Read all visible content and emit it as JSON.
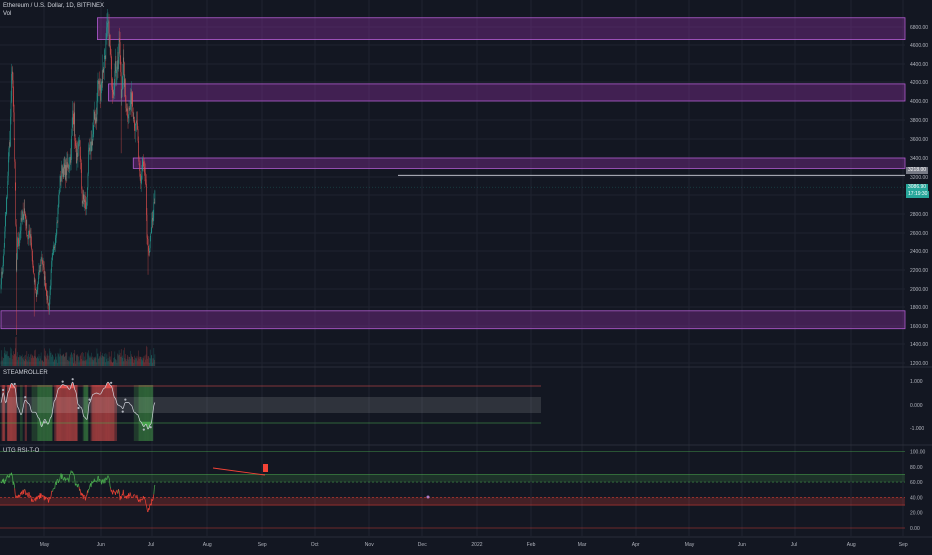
{
  "header": {
    "symbol_title": "Ethereum / U.S. Dollar, 1D, BITFINEX",
    "volume_label": "Vol"
  },
  "price_tags": {
    "resistance_value": "3218.00",
    "current_price": "3086.90",
    "countdown": "17:19:30"
  },
  "panes": {
    "steamroller": {
      "name": "STEAMROLLER"
    },
    "rsi": {
      "name": "UTG RSI-T-O"
    }
  },
  "colors": {
    "background": "#131722",
    "up": "#26a69a",
    "down": "#ef5350",
    "zone": "#7b2d8e",
    "zone_border": "#b15cd0",
    "rsi_green": "#4caf50",
    "rsi_red": "#f44336"
  },
  "chart_data": [
    {
      "type": "candlestick",
      "title": "Ethereum / U.S. Dollar, 1D, BITFINEX",
      "y_ticks": [
        "6800.00",
        "4600.00",
        "4400.00",
        "4200.00",
        "4000.00",
        "3800.00",
        "3600.00",
        "3400.00",
        "3200.00",
        "3000.00",
        "2800.00",
        "2600.00",
        "2400.00",
        "2200.00",
        "2000.00",
        "1800.00",
        "1600.00",
        "1400.00",
        "1200.00"
      ],
      "x_ticks": [
        "May",
        "Jun",
        "Jul",
        "Aug",
        "Sep",
        "Oct",
        "Nov",
        "Dec",
        "2022",
        "Feb",
        "Mar",
        "Apr",
        "May",
        "Jun",
        "Jul",
        "Aug",
        "Sep"
      ],
      "anchors": [
        [
          "Apr 20",
          2100
        ],
        [
          "Apr 24",
          2250
        ],
        [
          "Apr 28",
          2700
        ],
        [
          "May 1",
          2950
        ],
        [
          "May 4",
          3400
        ],
        [
          "May 7",
          3600
        ],
        [
          "May 10",
          4200
        ],
        [
          "May 12",
          4300
        ],
        [
          "May 14",
          3800
        ],
        [
          "May 17",
          3100
        ],
        [
          "May 19",
          2150
        ],
        [
          "May 21",
          2500
        ],
        [
          "May 24",
          2500
        ],
        [
          "May 28",
          2700
        ],
        [
          "Jun 3",
          2850
        ],
        [
          "Jun 10",
          2550
        ],
        [
          "Jun 15",
          2600
        ],
        [
          "Jun 20",
          2200
        ],
        [
          "Jun 26",
          1900
        ],
        [
          "Jul 1",
          2150
        ],
        [
          "Jul 6",
          2350
        ],
        [
          "Jul 12",
          2100
        ],
        [
          "Jul 17",
          1880
        ],
        [
          "Jul 20",
          1800
        ],
        [
          "Jul 25",
          2250
        ],
        [
          "Jul 31",
          2500
        ],
        [
          "Aug 5",
          2750
        ],
        [
          "Aug 10",
          3150
        ],
        [
          "Aug 14",
          3300
        ],
        [
          "Aug 20",
          3250
        ],
        [
          "Aug 25",
          3300
        ],
        [
          "Aug 31",
          3450
        ],
        [
          "Sep 3",
          3900
        ],
        [
          "Sep 6",
          3800
        ],
        [
          "Sep 8",
          3500
        ],
        [
          "Sep 12",
          3350
        ],
        [
          "Sep 16",
          3600
        ],
        [
          "Sep 21",
          2950
        ],
        [
          "Sep 25",
          2950
        ],
        [
          "Sep 29",
          2850
        ],
        [
          "Oct 3",
          3400
        ],
        [
          "Oct 9",
          3550
        ],
        [
          "Oct 14",
          3800
        ],
        [
          "Oct 18",
          3850
        ],
        [
          "Oct 21",
          4200
        ],
        [
          "Oct 26",
          4100
        ],
        [
          "Oct 30",
          4300
        ],
        [
          "Nov 4",
          4550
        ],
        [
          "Nov 9",
          4800
        ],
        [
          "Nov 12",
          4650
        ],
        [
          "Nov 16",
          4250
        ],
        [
          "Nov 19",
          4150
        ],
        [
          "Nov 22",
          4300
        ],
        [
          "Nov 25",
          4400
        ],
        [
          "Nov 28",
          4400
        ],
        [
          "Dec 1",
          4650
        ],
        [
          "Dec 3",
          4250
        ],
        [
          "Dec 4",
          4050
        ],
        [
          "Dec 8",
          4400
        ],
        [
          "Dec 12",
          4050
        ],
        [
          "Dec 15",
          3900
        ],
        [
          "Dec 20",
          3900
        ],
        [
          "Dec 24",
          4100
        ],
        [
          "Dec 28",
          3850
        ],
        [
          "Dec 31",
          3680
        ],
        [
          "Jan 3",
          3780
        ],
        [
          "Jan 6",
          3350
        ],
        [
          "Jan 10",
          3150
        ],
        [
          "Jan 14",
          3350
        ],
        [
          "Jan 17",
          3250
        ],
        [
          "Jan 20",
          3050
        ],
        [
          "Jan 22",
          2550
        ],
        [
          "Jan 24",
          2400
        ],
        [
          "Jan 27",
          2450
        ],
        [
          "Jan 31",
          2680
        ],
        [
          "Feb 3",
          2800
        ],
        [
          "Feb 6",
          3050
        ]
      ],
      "resistance_line": 3218,
      "zones": [
        {
          "y_top": 4900,
          "y_bottom": 4660,
          "x_start": "Oct 20"
        },
        {
          "y_top": 4180,
          "y_bottom": 4000,
          "x_start": "Nov 10"
        },
        {
          "y_top": 3400,
          "y_bottom": 3290,
          "x_start": "Dec 27"
        },
        {
          "y_top": 1760,
          "y_bottom": 1570,
          "x_start": "Apr 20"
        }
      ]
    },
    {
      "type": "line",
      "name": "STEAMROLLER",
      "y_ticks": [
        "1.000",
        "0.000",
        "-1.000"
      ],
      "ylim": [
        -1.2,
        1.2
      ]
    },
    {
      "type": "line",
      "name": "UTG RSI-T-O",
      "y_ticks": [
        "100.00",
        "80.00",
        "60.00",
        "40.00",
        "20.00",
        "0.00"
      ],
      "ylim": [
        0,
        100
      ],
      "levels": [
        100,
        70,
        60,
        40,
        30,
        0
      ]
    }
  ]
}
